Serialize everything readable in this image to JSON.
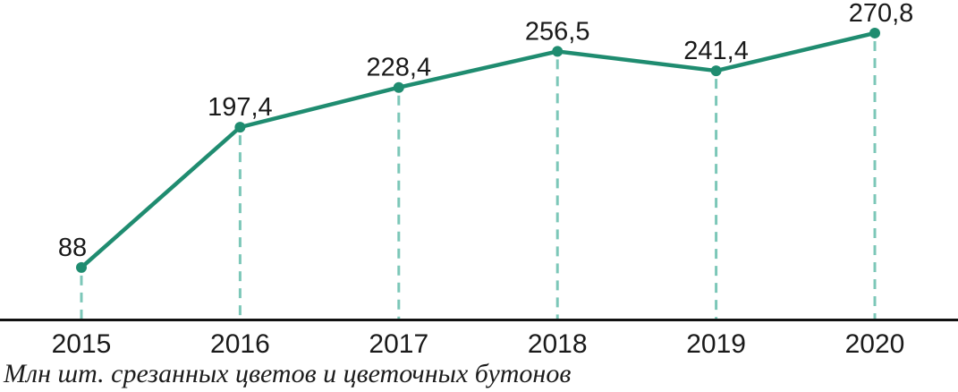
{
  "chart_data": {
    "type": "line",
    "categories": [
      "2015",
      "2016",
      "2017",
      "2018",
      "2019",
      "2020"
    ],
    "values": [
      88,
      197.4,
      228.4,
      256.5,
      241.4,
      270.8
    ],
    "value_labels": [
      "88",
      "197,4",
      "228,4",
      "256,5",
      "241,4",
      "270,8"
    ],
    "title": "",
    "xlabel": "",
    "ylabel": "",
    "caption": "Млн шт. срезанных цветов и цветочных бутонов",
    "legend_position": "none",
    "grid": "off",
    "y_axis_visible": false,
    "markers": true,
    "drop_lines": "dashed vertical from each point to x-axis",
    "colors": {
      "line": "#1f8c70",
      "marker": "#1f8c70",
      "drop_line": "#7cc7b8",
      "axis": "#111111",
      "label_text": "#1a1a1a",
      "caption_text": "#1c1c1c",
      "background": "#ffffff"
    }
  }
}
